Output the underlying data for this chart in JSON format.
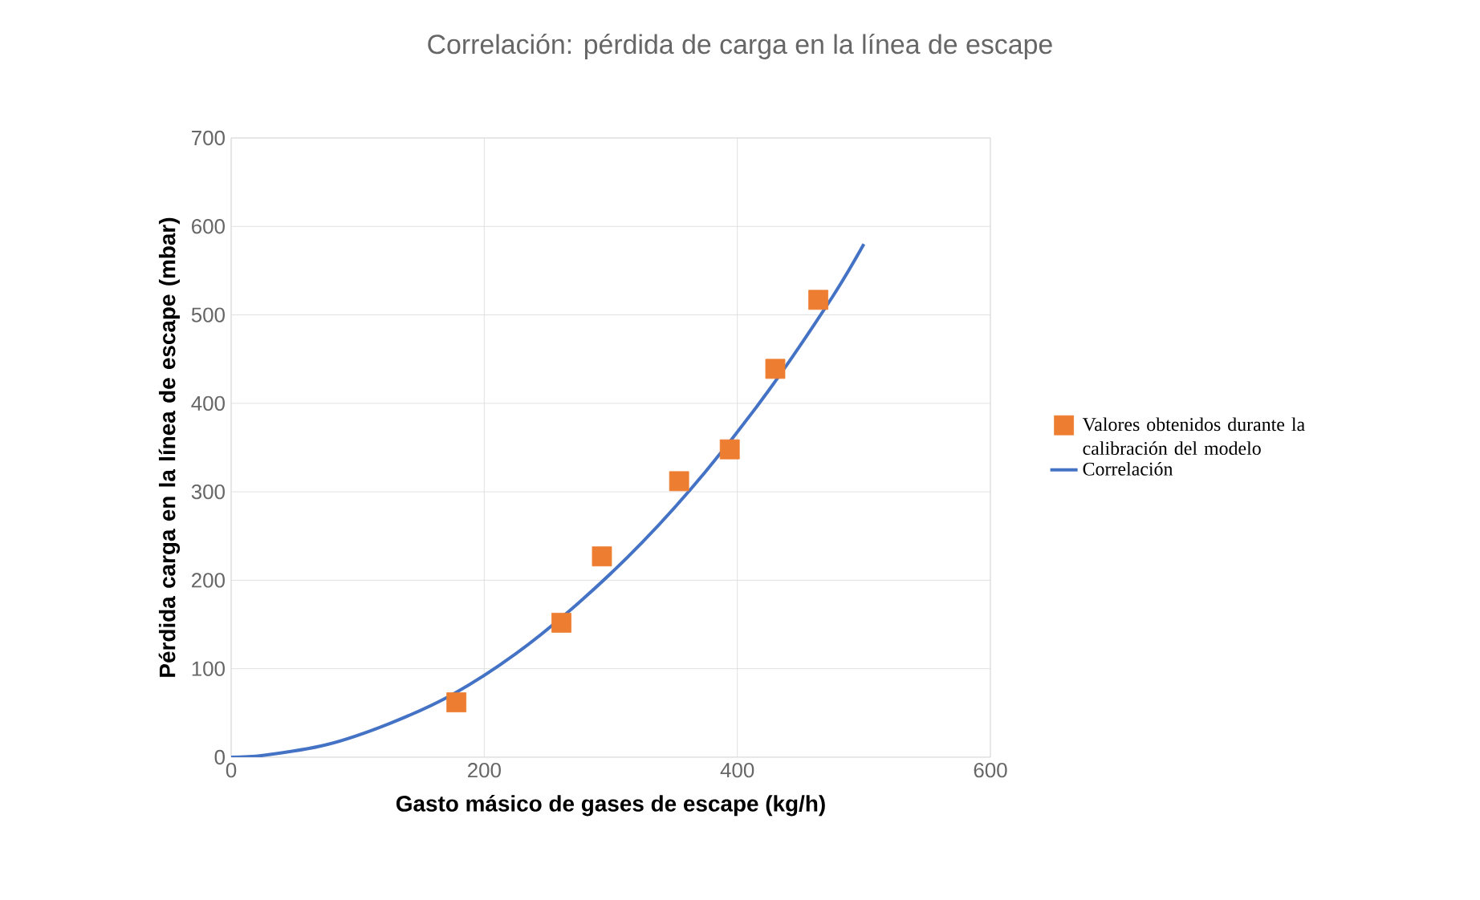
{
  "chart_data": {
    "type": "scatter",
    "title": "Correlación: pérdida de carga en la línea de escape",
    "xlabel": "Gasto másico de gases de escape (kg/h)",
    "ylabel": "Pérdida carga en la línea de escape (mbar)",
    "xlim": [
      0,
      600
    ],
    "ylim": [
      0,
      700
    ],
    "xticks": [
      0,
      200,
      400,
      600
    ],
    "yticks": [
      0,
      100,
      200,
      300,
      400,
      500,
      600,
      700
    ],
    "grid": true,
    "legend": "right",
    "series": [
      {
        "name": "Valores obtenidos durante la calibración del modelo",
        "marker": "square",
        "color": "#ed7d31",
        "x": [
          178,
          261,
          293,
          354,
          394,
          430,
          464
        ],
        "values": [
          62,
          152,
          227,
          312,
          348,
          439,
          517
        ]
      },
      {
        "name": "Correlación",
        "type": "line",
        "marker": "none",
        "line_style": "solid",
        "color": "#4472c4",
        "x": [
          0,
          25,
          75,
          125,
          175,
          225,
          275,
          325,
          375,
          425,
          475,
          500
        ],
        "values": [
          0,
          2,
          14,
          38,
          71,
          117,
          175,
          243,
          323,
          415,
          520,
          580
        ]
      }
    ]
  }
}
